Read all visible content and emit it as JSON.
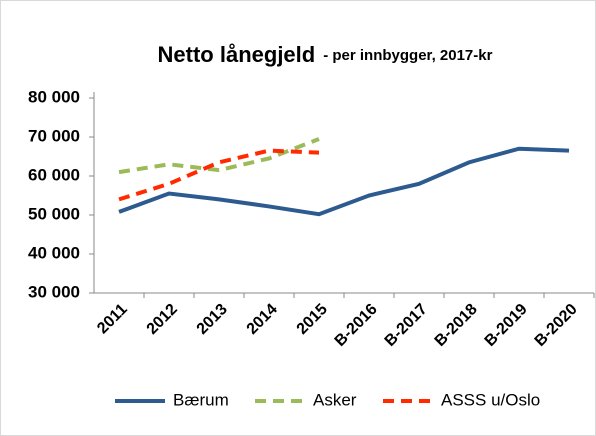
{
  "chart_data": {
    "type": "line",
    "title": "Netto lånegjeld",
    "subtitle": "- per innbygger, 2017-kr",
    "categories": [
      "2011",
      "2012",
      "2013",
      "2014",
      "2015",
      "B-2016",
      "B-2017",
      "B-2018",
      "B-2019",
      "B-2020"
    ],
    "series": [
      {
        "name": "Bærum",
        "color": "#2e5b8f",
        "dashed": false,
        "values": [
          50800,
          55500,
          54000,
          52200,
          50200,
          55000,
          58000,
          63500,
          67000,
          66500
        ]
      },
      {
        "name": "Asker",
        "color": "#9bbb59",
        "dashed": true,
        "values": [
          61000,
          63000,
          61500,
          64500,
          69500,
          null,
          null,
          null,
          null,
          null
        ]
      },
      {
        "name": "ASSS u/Oslo",
        "color": "#ff2a00",
        "dashed": true,
        "values": [
          54000,
          58000,
          63500,
          66500,
          66000,
          null,
          null,
          null,
          null,
          null
        ]
      }
    ],
    "ylim": [
      30000,
      80000
    ],
    "yticks": [
      {
        "value": 30000,
        "label": "30 000"
      },
      {
        "value": 40000,
        "label": "40 000"
      },
      {
        "value": 50000,
        "label": "50 000"
      },
      {
        "value": 60000,
        "label": "60 000"
      },
      {
        "value": 70000,
        "label": "70 000"
      },
      {
        "value": 80000,
        "label": "80 000"
      }
    ],
    "grid": false,
    "legend": "bottom"
  }
}
